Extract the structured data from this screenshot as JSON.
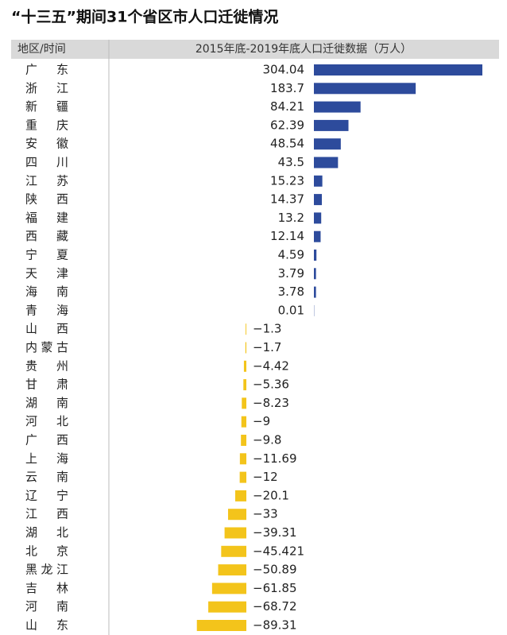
{
  "chart_data": {
    "type": "bar",
    "title": "“十三五”期间31个省区市人口迁徙情况",
    "column_header": "地区/时间",
    "value_header": "2015年底-2019年底人口迁徙数据（万人）",
    "categories": [
      "广东",
      "浙江",
      "新疆",
      "重庆",
      "安徽",
      "四川",
      "江苏",
      "陕西",
      "福建",
      "西藏",
      "宁夏",
      "天津",
      "海南",
      "青海",
      "山西",
      "内蒙古",
      "贵州",
      "甘肃",
      "湖南",
      "河北",
      "广西",
      "上海",
      "云南",
      "辽宁",
      "江西",
      "湖北",
      "北京",
      "黑龙江",
      "吉林",
      "河南",
      "山东"
    ],
    "values": [
      304.04,
      183.7,
      84.21,
      62.39,
      48.54,
      43.5,
      15.23,
      14.37,
      13.2,
      12.14,
      4.59,
      3.79,
      3.78,
      0.01,
      -1.3,
      -1.7,
      -4.42,
      -5.36,
      -8.23,
      -9,
      -9.8,
      -11.69,
      -12,
      -20.1,
      -33,
      -39.31,
      -45.421,
      -50.89,
      -61.85,
      -68.72,
      -89.31
    ],
    "value_labels": [
      "304.04",
      "183.7",
      "84.21",
      "62.39",
      "48.54",
      "43.5",
      "15.23",
      "14.37",
      "13.2",
      "12.14",
      "4.59",
      "3.79",
      "3.78",
      "0.01",
      "−1.3",
      "−1.7",
      "−4.42",
      "−5.36",
      "−8.23",
      "−9",
      "−9.8",
      "−11.69",
      "−12",
      "−20.1",
      "−33",
      "−39.31",
      "−45.421",
      "−50.89",
      "−61.85",
      "−68.72",
      "−89.31"
    ],
    "positive_color": "#2d4b9c",
    "negative_color": "#f3c41b"
  }
}
